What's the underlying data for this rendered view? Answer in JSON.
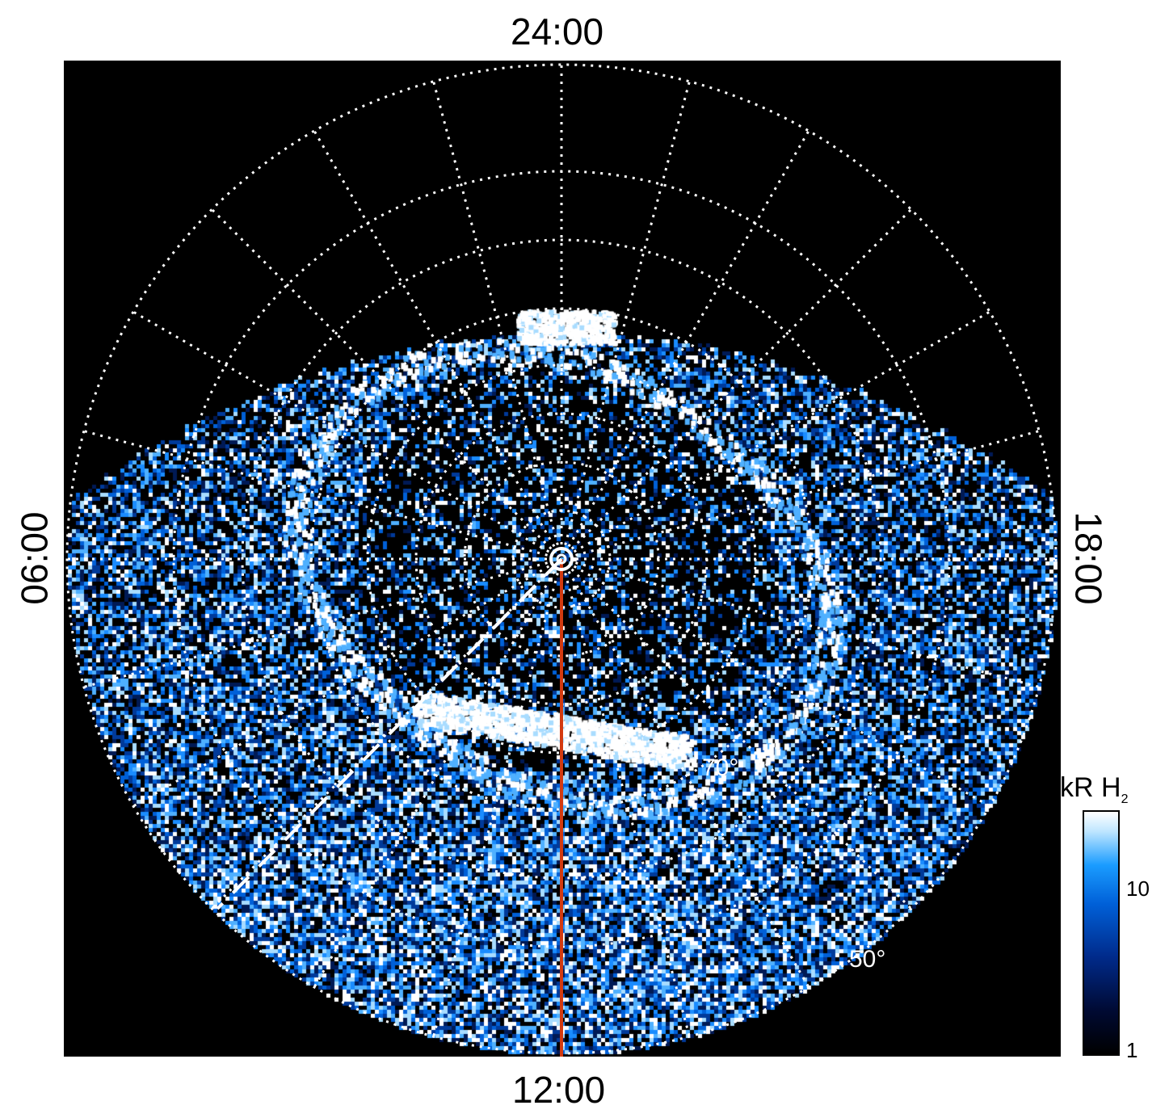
{
  "local_time_labels": {
    "top": "24:00",
    "bottom": "12:00",
    "left": "06:00",
    "right": "18:00"
  },
  "latitude_labels": [
    "70°",
    "50°"
  ],
  "colorbar": {
    "title_main": "kR H",
    "title_sub": "2",
    "ticks": [
      "10",
      "1"
    ],
    "scale": "log",
    "colors": [
      "#000000",
      "#002a8a",
      "#0060d8",
      "#1a9cff",
      "#ffffff"
    ]
  },
  "overlay_colors": {
    "grid": "#ffffff",
    "meridian_line": "#d33a10",
    "dashed_line": "#ffffff"
  }
}
